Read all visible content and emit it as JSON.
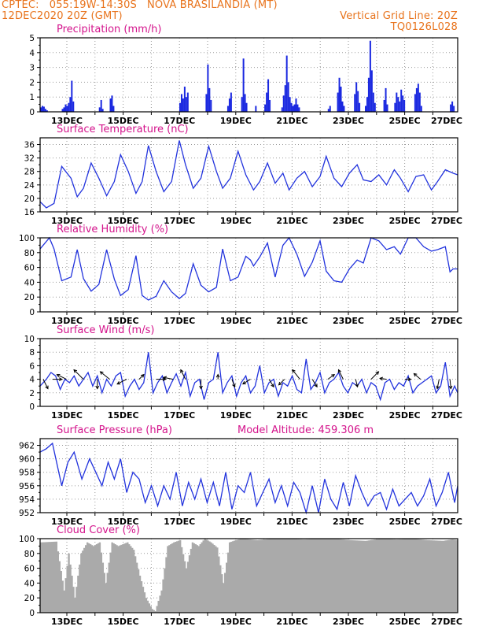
{
  "header": {
    "line1_left": "CPTEC:   055:19W-14:30S   NOVA BRASILANDIA (MT)",
    "line2_left": "12DEC2020 20Z (GMT)",
    "line2_right": "Vertical Grid Line: 20Z",
    "line3_right": "TQ0126L028"
  },
  "colors": {
    "line": "#2233dd",
    "bar": "#1a28e0",
    "cloud": "#aaaaaa",
    "title": "#d4148c",
    "header": "#e8731c",
    "grid": "#9a9a9a"
  },
  "chart_data": [
    {
      "type": "bar",
      "title": "Precipitation (mm/h)",
      "xtick_labels": [
        "13DEC",
        "15DEC",
        "17DEC",
        "19DEC",
        "21DEC",
        "23DEC",
        "25DEC",
        "27DEC"
      ],
      "ylim": [
        0,
        5
      ],
      "yticks": [
        0,
        1,
        2,
        3,
        4,
        5
      ],
      "x_range_hours": [
        0,
        350
      ],
      "grid": true,
      "bars": [
        [
          0.5,
          0.3
        ],
        [
          1.5,
          0.4
        ],
        [
          2.5,
          0.35
        ],
        [
          3.5,
          0.2
        ],
        [
          4.5,
          0.1
        ],
        [
          14.5,
          0.2
        ],
        [
          15.5,
          0.3
        ],
        [
          16.5,
          0.5
        ],
        [
          17.5,
          0.4
        ],
        [
          18.5,
          0.6
        ],
        [
          19.5,
          1.0
        ],
        [
          20.5,
          2.1
        ],
        [
          21.5,
          0.7
        ],
        [
          38.5,
          0.3
        ],
        [
          39.5,
          0.8
        ],
        [
          40.5,
          0.2
        ],
        [
          45.5,
          0.9
        ],
        [
          46.5,
          1.1
        ],
        [
          47.5,
          0.4
        ],
        [
          90.5,
          0.6
        ],
        [
          91.5,
          1.2
        ],
        [
          92.5,
          0.9
        ],
        [
          93.5,
          1.7
        ],
        [
          94.5,
          1.0
        ],
        [
          95.5,
          1.3
        ],
        [
          107.5,
          1.2
        ],
        [
          108.5,
          3.2
        ],
        [
          109.5,
          1.6
        ],
        [
          110.5,
          0.8
        ],
        [
          121.5,
          0.4
        ],
        [
          122.5,
          0.9
        ],
        [
          123.5,
          1.3
        ],
        [
          130.5,
          1.0
        ],
        [
          131.5,
          3.6
        ],
        [
          132.5,
          1.2
        ],
        [
          133.5,
          0.6
        ],
        [
          139.5,
          0.4
        ],
        [
          145.5,
          0.5
        ],
        [
          146.5,
          1.3
        ],
        [
          147.5,
          2.2
        ],
        [
          148.5,
          0.8
        ],
        [
          156.5,
          0.3
        ],
        [
          157.5,
          1.1
        ],
        [
          158.5,
          1.8
        ],
        [
          159.5,
          3.8
        ],
        [
          160.5,
          2.0
        ],
        [
          161.5,
          1.0
        ],
        [
          162.5,
          0.6
        ],
        [
          163.5,
          0.4
        ],
        [
          164.5,
          0.5
        ],
        [
          165.5,
          0.9
        ],
        [
          166.5,
          0.5
        ],
        [
          167.5,
          0.3
        ],
        [
          186.5,
          0.2
        ],
        [
          187.5,
          0.4
        ],
        [
          192.5,
          1.3
        ],
        [
          193.5,
          2.3
        ],
        [
          194.5,
          1.7
        ],
        [
          195.5,
          0.7
        ],
        [
          196.5,
          0.4
        ],
        [
          203.5,
          1.2
        ],
        [
          204.5,
          2.0
        ],
        [
          205.5,
          1.4
        ],
        [
          206.5,
          0.6
        ],
        [
          210.5,
          0.4
        ],
        [
          211.5,
          1.0
        ],
        [
          212.5,
          2.3
        ],
        [
          213.5,
          4.8
        ],
        [
          214.5,
          2.8
        ],
        [
          215.5,
          1.3
        ],
        [
          216.5,
          0.6
        ],
        [
          222.5,
          0.8
        ],
        [
          223.5,
          1.6
        ],
        [
          224.5,
          0.5
        ],
        [
          229.5,
          0.6
        ],
        [
          230.5,
          1.3
        ],
        [
          231.5,
          1.0
        ],
        [
          232.5,
          0.7
        ],
        [
          233.5,
          1.5
        ],
        [
          234.5,
          1.1
        ],
        [
          235.5,
          0.8
        ],
        [
          242.5,
          1.2
        ],
        [
          243.5,
          1.6
        ],
        [
          244.5,
          1.9
        ],
        [
          245.5,
          1.3
        ],
        [
          246.5,
          0.4
        ],
        [
          265.5,
          0.5
        ],
        [
          266.5,
          0.7
        ],
        [
          267.5,
          0.4
        ]
      ]
    },
    {
      "type": "line",
      "title": "Surface Temperature (nC)",
      "xtick_labels": [
        "13DEC",
        "15DEC",
        "17DEC",
        "19DEC",
        "21DEC",
        "23DEC",
        "25DEC",
        "27DEC"
      ],
      "ylim": [
        16,
        38
      ],
      "yticks": [
        16,
        20,
        24,
        28,
        32,
        36
      ],
      "grid": true,
      "x_hours": [
        0,
        4,
        9,
        14,
        20,
        24,
        28,
        33,
        38,
        43,
        48,
        52,
        57,
        62,
        66,
        70,
        75,
        80,
        85,
        90,
        94,
        99,
        104,
        109,
        114,
        118,
        123,
        128,
        133,
        138,
        142,
        147,
        152,
        157,
        161,
        166,
        171,
        176,
        181,
        185,
        190,
        195,
        200,
        205,
        209,
        214,
        219,
        224,
        229,
        233,
        238,
        243,
        248,
        253,
        257,
        262,
        267,
        270
      ],
      "values": [
        19,
        17.2,
        18.5,
        29.5,
        26,
        20.5,
        23,
        30.5,
        26,
        20.8,
        25,
        33,
        28,
        21.5,
        25,
        35.7,
        28,
        22,
        25,
        37.2,
        30,
        23,
        26,
        35.5,
        28,
        23,
        26,
        34,
        27,
        22.5,
        25,
        30.5,
        24.5,
        27.5,
        22.5,
        26,
        28,
        23.5,
        26.5,
        32.5,
        26,
        23.5,
        27.5,
        30,
        25.5,
        25,
        27,
        24,
        28.5,
        26,
        22,
        26.5,
        27,
        22.5,
        25,
        28.5,
        27.5,
        27
      ]
    },
    {
      "type": "line",
      "title": "Relative Humidity (%)",
      "xtick_labels": [
        "13DEC",
        "15DEC",
        "17DEC",
        "19DEC",
        "21DEC",
        "23DEC",
        "25DEC",
        "27DEC"
      ],
      "ylim": [
        0,
        100
      ],
      "yticks": [
        0,
        20,
        40,
        60,
        80,
        100
      ],
      "grid": true,
      "x_hours": [
        0,
        6,
        9,
        14,
        20,
        24,
        28,
        33,
        38,
        43,
        48,
        52,
        57,
        62,
        66,
        70,
        75,
        80,
        85,
        90,
        94,
        99,
        104,
        109,
        114,
        118,
        123,
        128,
        133,
        136,
        138,
        142,
        147,
        152,
        157,
        161,
        166,
        171,
        176,
        181,
        185,
        190,
        195,
        200,
        205,
        209,
        214,
        219,
        224,
        229,
        233,
        238,
        243,
        248,
        253,
        257,
        262,
        265,
        267,
        270
      ],
      "values": [
        85,
        100,
        85,
        42,
        47,
        84,
        45,
        28,
        37,
        84,
        44,
        22,
        30,
        76,
        22,
        16,
        21,
        42,
        27,
        18,
        25,
        65,
        36,
        27,
        33,
        85,
        42,
        47,
        75,
        70,
        62,
        74,
        93,
        47,
        90,
        100,
        78,
        48,
        67,
        96,
        55,
        42,
        40,
        58,
        70,
        66,
        100,
        96,
        84,
        88,
        78,
        100,
        100,
        88,
        82,
        84,
        88,
        54,
        58,
        58
      ]
    },
    {
      "type": "line",
      "title": "Surface Wind (m/s)",
      "xtick_labels": [
        "13DEC",
        "15DEC",
        "17DEC",
        "19DEC",
        "21DEC",
        "23DEC",
        "25DEC",
        "27DEC"
      ],
      "ylim": [
        0,
        10
      ],
      "yticks": [
        0,
        2,
        4,
        6,
        8,
        10
      ],
      "grid": true,
      "x_hours": [
        0,
        4,
        7,
        10,
        13,
        16,
        19,
        22,
        25,
        28,
        31,
        34,
        37,
        40,
        43,
        46,
        49,
        52,
        55,
        58,
        61,
        64,
        67,
        70,
        73,
        76,
        79,
        82,
        85,
        88,
        91,
        94,
        97,
        100,
        103,
        106,
        109,
        112,
        115,
        118,
        121,
        124,
        127,
        130,
        133,
        136,
        139,
        142,
        145,
        148,
        151,
        154,
        157,
        160,
        163,
        166,
        169,
        172,
        175,
        178,
        181,
        184,
        187,
        190,
        193,
        196,
        199,
        202,
        205,
        208,
        211,
        214,
        217,
        220,
        223,
        226,
        229,
        232,
        235,
        238,
        241,
        244,
        247,
        250,
        253,
        256,
        259,
        262,
        265,
        268,
        270
      ],
      "values": [
        3,
        4,
        5,
        4.5,
        2.5,
        4,
        3.5,
        4.5,
        3,
        4,
        5,
        3,
        4.5,
        2,
        4,
        3,
        4.5,
        5,
        1.5,
        3,
        4,
        2.5,
        3.5,
        8,
        2,
        3.5,
        4.5,
        2,
        3.5,
        4.8,
        3,
        5,
        1.5,
        3.5,
        4,
        1,
        3.5,
        4,
        8,
        2,
        3.5,
        4.5,
        1.5,
        3.5,
        4.5,
        2,
        3,
        6,
        2,
        3.5,
        4,
        1.5,
        3.5,
        3,
        4.5,
        2.5,
        2,
        7,
        2.5,
        3.5,
        5,
        2,
        3.5,
        4,
        5,
        3,
        2,
        3.5,
        3,
        4,
        2,
        3.5,
        3,
        1,
        3.5,
        4,
        2.5,
        3.5,
        3,
        4.5,
        2,
        3,
        3.5,
        4,
        4.5,
        2,
        3,
        6.5,
        1.5,
        3,
        2
      ],
      "vectors": [
        {
          "x": 2,
          "u": 0.5,
          "v": -1
        },
        {
          "x": 8,
          "u": 1,
          "v": 0
        },
        {
          "x": 17,
          "u": -1,
          "v": 0.5
        },
        {
          "x": 28,
          "u": -1,
          "v": 1
        },
        {
          "x": 37,
          "u": 0,
          "v": -1
        },
        {
          "x": 45,
          "u": -1,
          "v": 0.8
        },
        {
          "x": 56,
          "u": -1,
          "v": -0.5
        },
        {
          "x": 64,
          "u": 0.5,
          "v": 0.5
        },
        {
          "x": 75,
          "u": 1,
          "v": 0
        },
        {
          "x": 86,
          "u": -1,
          "v": 0.2
        },
        {
          "x": 94,
          "u": -0.5,
          "v": 1
        },
        {
          "x": 104,
          "u": 0,
          "v": -1
        },
        {
          "x": 115,
          "u": 0,
          "v": 0.5
        },
        {
          "x": 124,
          "u": 0.3,
          "v": -0.8
        },
        {
          "x": 136,
          "u": -0.8,
          "v": -0.5
        },
        {
          "x": 148,
          "u": 0.5,
          "v": -0.8
        },
        {
          "x": 158,
          "u": -0.6,
          "v": -0.6
        },
        {
          "x": 168,
          "u": -0.8,
          "v": 1
        },
        {
          "x": 176,
          "u": 0.5,
          "v": -0.8
        },
        {
          "x": 186,
          "u": 0.7,
          "v": 0.5
        },
        {
          "x": 196,
          "u": -0.5,
          "v": 1
        },
        {
          "x": 204,
          "u": 0.2,
          "v": -0.8
        },
        {
          "x": 214,
          "u": 0.8,
          "v": 0.8
        },
        {
          "x": 224,
          "u": -0.7,
          "v": 0.1
        },
        {
          "x": 236,
          "u": 0.6,
          "v": 0
        },
        {
          "x": 246,
          "u": -0.7,
          "v": 0.6
        },
        {
          "x": 258,
          "u": -0.2,
          "v": -1
        },
        {
          "x": 265,
          "u": 0.1,
          "v": -1
        }
      ]
    },
    {
      "type": "line",
      "title": "Surface Pressure (hPa)",
      "annotation": "Model Altitude: 459.306 m",
      "xtick_labels": [
        "13DEC",
        "15DEC",
        "17DEC",
        "19DEC",
        "21DEC",
        "23DEC",
        "25DEC",
        "27DEC"
      ],
      "ylim": [
        952,
        963
      ],
      "yticks": [
        952,
        954,
        956,
        958,
        960,
        962
      ],
      "grid": true,
      "x_hours": [
        0,
        4,
        8,
        14,
        18,
        22,
        27,
        32,
        36,
        40,
        44,
        48,
        52,
        56,
        60,
        64,
        68,
        72,
        76,
        80,
        84,
        88,
        92,
        96,
        100,
        104,
        108,
        112,
        116,
        120,
        124,
        128,
        132,
        136,
        140,
        144,
        148,
        152,
        156,
        160,
        164,
        168,
        172,
        176,
        180,
        184,
        188,
        192,
        196,
        200,
        204,
        208,
        212,
        216,
        220,
        224,
        228,
        232,
        236,
        240,
        244,
        248,
        252,
        256,
        260,
        264,
        268,
        270
      ],
      "values": [
        961,
        961.5,
        962.3,
        956,
        959.5,
        961,
        957,
        960,
        958,
        956,
        959.5,
        957,
        960,
        955,
        958,
        957,
        953.5,
        956,
        953,
        956,
        954,
        958,
        953,
        956.5,
        954,
        957,
        953.5,
        956.5,
        953,
        958,
        952.5,
        956,
        955,
        958,
        953,
        955,
        957,
        953.5,
        956,
        953,
        956.5,
        955,
        952,
        956,
        952,
        957,
        954,
        952.5,
        956.5,
        953,
        957.5,
        955,
        953,
        954.5,
        955,
        952.5,
        955.5,
        953,
        954,
        955,
        953,
        954.5,
        957,
        953,
        955,
        958,
        953.5,
        956
      ]
    },
    {
      "type": "bar",
      "title": "Cloud Cover (%)",
      "xtick_labels": [
        "13DEC",
        "15DEC",
        "17DEC",
        "19DEC",
        "21DEC",
        "23DEC",
        "25DEC",
        "27DEC"
      ],
      "ylim": [
        0,
        100
      ],
      "yticks": [
        0,
        20,
        40,
        60,
        80,
        100
      ],
      "grid": true,
      "x_hours": [
        0,
        10,
        15,
        18,
        22,
        26,
        30,
        34,
        38,
        42,
        46,
        50,
        56,
        60,
        64,
        68,
        72,
        74,
        78,
        82,
        86,
        90,
        94,
        98,
        102,
        106,
        110,
        114,
        118,
        122,
        126,
        130,
        140,
        150,
        160,
        170,
        180,
        190,
        200,
        210,
        220,
        230,
        240,
        250,
        260,
        266,
        270
      ],
      "values": [
        95,
        96,
        30,
        80,
        20,
        80,
        95,
        90,
        95,
        40,
        95,
        90,
        95,
        85,
        50,
        20,
        5,
        2,
        30,
        90,
        95,
        98,
        60,
        95,
        90,
        100,
        95,
        88,
        40,
        95,
        98,
        100,
        98,
        100,
        100,
        99,
        100,
        100,
        98,
        97,
        100,
        99,
        100,
        98,
        97,
        99,
        98
      ]
    }
  ]
}
